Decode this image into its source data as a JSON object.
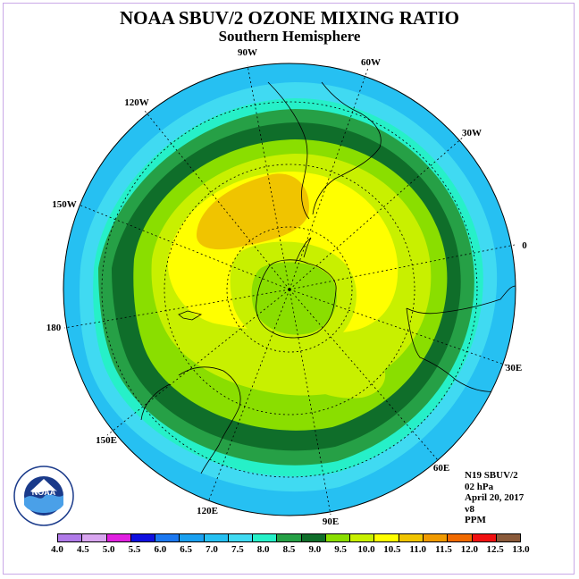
{
  "title": "NOAA SBUV/2 OZONE MIXING RATIO",
  "subtitle": "Southern Hemisphere",
  "longitude_labels": [
    "90W",
    "60W",
    "30W",
    "0",
    "30E",
    "60E",
    "90E",
    "120E",
    "150E",
    "180",
    "150W",
    "120W"
  ],
  "info": {
    "instrument": "N19 SBUV/2",
    "pressure": "02 hPa",
    "date": "April 20, 2017",
    "version": "v8",
    "units": "PPM"
  },
  "logo": {
    "text": "NOAA"
  },
  "colorbar": {
    "ticks": [
      "4.0",
      "4.5",
      "5.0",
      "5.5",
      "6.0",
      "6.5",
      "7.0",
      "7.5",
      "8.0",
      "8.5",
      "9.0",
      "9.5",
      "10.0",
      "10.5",
      "11.0",
      "11.5",
      "12.0",
      "12.5",
      "13.0"
    ],
    "colors": [
      "#b07ae8",
      "#d9a6f0",
      "#e020e0",
      "#1010e0",
      "#1c78f0",
      "#1aa0f0",
      "#26c0f2",
      "#40daf2",
      "#26f0c8",
      "#26a046",
      "#0f6e2a",
      "#8ade00",
      "#c8f000",
      "#ffff00",
      "#f0c400",
      "#f09a00",
      "#f06a00",
      "#f01010",
      "#8a5a3a"
    ]
  }
}
